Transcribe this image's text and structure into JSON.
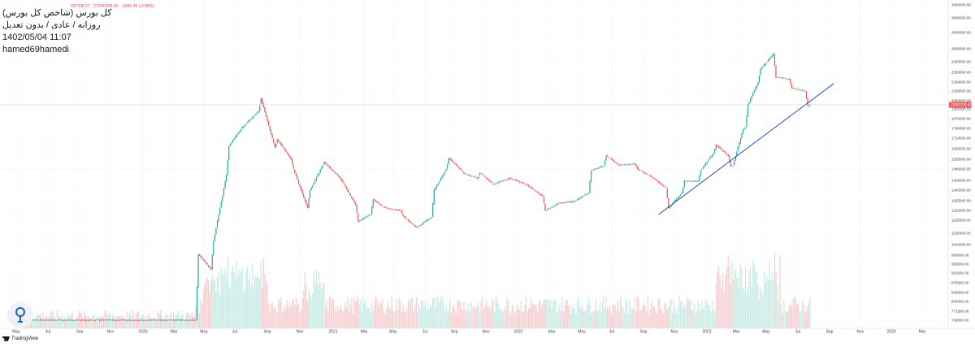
{
  "header": {
    "symbol_title": "کل بورس (شاخص کل بورس)",
    "interval_line": "روزانه / عادی / بدون تعدیل",
    "datetime": "1402/05/04 11:07",
    "author": "hamed69hamedi"
  },
  "ohlc": {
    "open": "997238.27",
    "close": "C2000208.40",
    "change": "-1686.45 (-0.08%)"
  },
  "brand": {
    "name": "TradingView",
    "icon": "tradingview-logo-icon"
  },
  "logo": {
    "icon": "location-pin-icon"
  },
  "colors": {
    "up": "#26a69a",
    "down": "#ef5350",
    "trendline": "#2a4db0",
    "last_price": "#ef5350",
    "vol_up": "#c8ebe5",
    "vol_down": "#f7cdd0"
  },
  "chart_data": {
    "type": "candlestick",
    "title": "کل بورس (شاخص کل بورس)",
    "price_axis": {
      "ticks": [
        "3300000.00",
        "3000000.00",
        "2800000.00",
        "2600000.00",
        "2450000.00",
        "2350000.00",
        "2250000.00",
        "2150000.00",
        "2050000.00",
        "1950000.00",
        "1870000.00",
        "1790000.00",
        "1710000.00",
        "1630000.00",
        "1555000.00",
        "1480000.00",
        "1405000.00",
        "1345000.00",
        "1285000.00",
        "1225000.00",
        "1165000.00",
        "1105000.00",
        "1045000.00",
        "995000.00",
        "955000.00",
        "915000.00",
        "875000.00",
        "840000.00",
        "804000.00",
        "771500.00",
        "739500.00"
      ],
      "last_price": "2000208.40"
    },
    "time_axis": [
      "May",
      "Jul",
      "Sep",
      "Nov",
      "2020",
      "Mar",
      "May",
      "Jul",
      "Sep",
      "Nov",
      "2021",
      "Mar",
      "May",
      "Jul",
      "Sep",
      "Nov",
      "2022",
      "Mar",
      "May",
      "Jul",
      "Sep",
      "Nov",
      "2023",
      "Mar",
      "May",
      "Jul",
      "Sep",
      "Nov",
      "2024",
      "Mar"
    ],
    "series_path": [
      [
        "May 2019",
        700000
      ],
      [
        "Sep 2019",
        700000
      ],
      [
        "Jan 2020",
        700000
      ],
      [
        "Apr 2020",
        715000
      ],
      [
        "Apr 2020",
        1000000
      ],
      [
        "May 2020",
        930000
      ],
      [
        "May 2020",
        1065000
      ],
      [
        "Jun 2020",
        1440000
      ],
      [
        "Jun 2020",
        1650000
      ],
      [
        "Jul 2020",
        1800000
      ],
      [
        "Aug 2020",
        1930000
      ],
      [
        "Aug 2020",
        2070000
      ],
      [
        "Sep 2020",
        1640000
      ],
      [
        "Sep 2020",
        1700000
      ],
      [
        "Oct 2020",
        1555000
      ],
      [
        "Oct 2020",
        1480000
      ],
      [
        "Nov 2020",
        1240000
      ],
      [
        "Nov 2020",
        1345000
      ],
      [
        "Dec 2020",
        1530000
      ],
      [
        "Jan 2021",
        1420000
      ],
      [
        "Feb 2021",
        1260000
      ],
      [
        "Feb 2021",
        1160000
      ],
      [
        "Mar 2021",
        1200000
      ],
      [
        "Mar 2021",
        1290000
      ],
      [
        "Apr 2021",
        1240000
      ],
      [
        "May 2021",
        1225000
      ],
      [
        "May 2021",
        1190000
      ],
      [
        "Jun 2021",
        1130000
      ],
      [
        "Jul 2021",
        1185000
      ],
      [
        "Jul 2021",
        1345000
      ],
      [
        "Aug 2021",
        1480000
      ],
      [
        "Aug 2021",
        1565000
      ],
      [
        "Sep 2021",
        1470000
      ],
      [
        "Sep 2021",
        1450000
      ],
      [
        "Oct 2021",
        1420000
      ],
      [
        "Oct 2021",
        1455000
      ],
      [
        "Nov 2021",
        1380000
      ],
      [
        "Dec 2021",
        1420000
      ],
      [
        "Jan 2022",
        1380000
      ],
      [
        "Feb 2022",
        1310000
      ],
      [
        "Feb 2022",
        1225000
      ],
      [
        "Mar 2022",
        1270000
      ],
      [
        "Apr 2022",
        1280000
      ],
      [
        "May 2022",
        1330000
      ],
      [
        "May 2022",
        1470000
      ],
      [
        "Jun 2022",
        1505000
      ],
      [
        "Jun 2022",
        1580000
      ],
      [
        "Jul 2022",
        1510000
      ],
      [
        "Aug 2022",
        1520000
      ],
      [
        "Aug 2022",
        1480000
      ],
      [
        "Sep 2022",
        1430000
      ],
      [
        "Oct 2022",
        1360000
      ],
      [
        "Oct 2022",
        1240000
      ],
      [
        "Nov 2022",
        1330000
      ],
      [
        "Nov 2022",
        1400000
      ],
      [
        "Dec 2022",
        1400000
      ],
      [
        "Dec 2022",
        1470000
      ],
      [
        "Jan 2023",
        1600000
      ],
      [
        "Jan 2023",
        1660000
      ],
      [
        "Feb 2023",
        1580000
      ],
      [
        "Feb 2023",
        1500000
      ],
      [
        "Feb 2023",
        1510000
      ],
      [
        "Mar 2023",
        1780000
      ],
      [
        "Mar 2023",
        1800000
      ],
      [
        "Mar 2023",
        2000000
      ],
      [
        "Apr 2023",
        2250000
      ],
      [
        "Apr 2023",
        2380000
      ],
      [
        "May 2023",
        2540000
      ],
      [
        "May 2023",
        2300000
      ],
      [
        "Jun 2023",
        2280000
      ],
      [
        "Jun 2023",
        2180000
      ],
      [
        "Jul 2023",
        2150000
      ],
      [
        "Jul 2023",
        1980000
      ],
      [
        "Jul 2023",
        2000208
      ]
    ],
    "trendline": {
      "from": [
        "Oct 2022",
        1200000
      ],
      "to": [
        "Aug 2023",
        2180000
      ]
    },
    "grid": true
  }
}
